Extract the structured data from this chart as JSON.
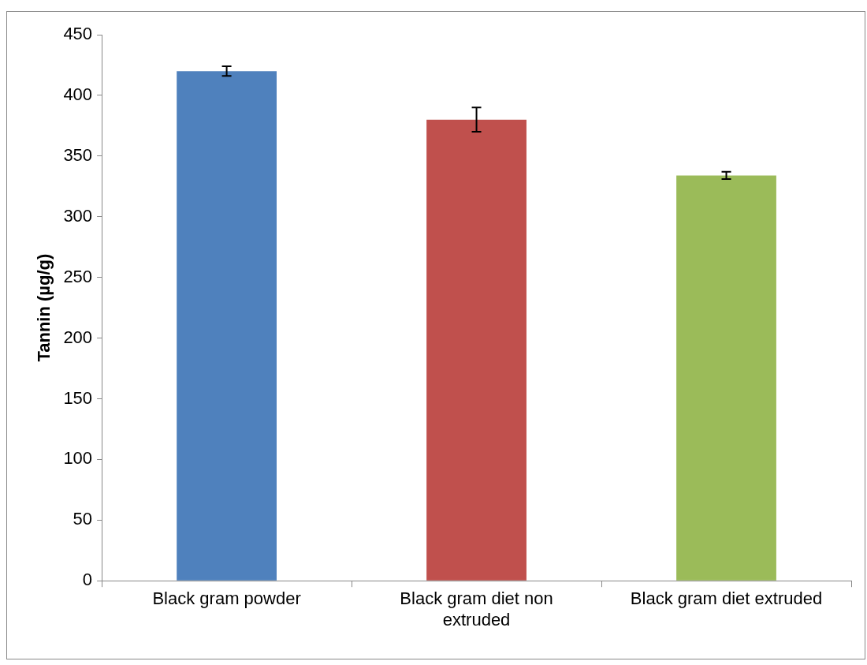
{
  "chart_data": {
    "type": "bar",
    "ylabel": "Tannin (µg/g)",
    "categories": [
      "Black gram powder",
      "Black gram diet non extruded",
      "Black gram diet extruded"
    ],
    "values": [
      420,
      380,
      334
    ],
    "colors": [
      "#4f81bd",
      "#c0504d",
      "#9bbb59"
    ],
    "errors": [
      4,
      10,
      3
    ],
    "ylim": [
      0,
      450
    ],
    "yticks": [
      0,
      50,
      100,
      150,
      200,
      250,
      300,
      350,
      400,
      450
    ],
    "grid": false,
    "legend": false
  }
}
